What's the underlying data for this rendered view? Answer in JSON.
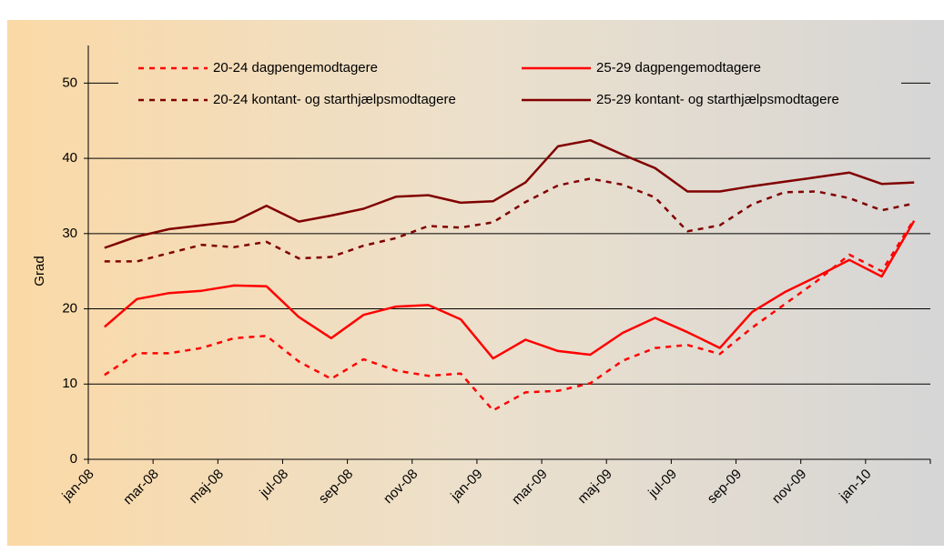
{
  "chart_data": {
    "type": "line",
    "y_axis_label": "Grad",
    "categories": [
      "jan-08",
      null,
      "mar-08",
      null,
      "maj-08",
      null,
      "jul-08",
      null,
      "sep-08",
      null,
      "nov-08",
      null,
      "jan-09",
      null,
      "mar-09",
      null,
      "maj-09",
      null,
      "jul-09",
      null,
      "sep-09",
      null,
      "nov-09",
      null,
      "jan-10",
      null
    ],
    "series": [
      {
        "name": "20-24 dagpengemodtagere",
        "color": "#ff0000",
        "style": "dashed",
        "values": [
          11.2,
          14.1,
          14.1,
          14.8,
          16.1,
          16.4,
          13.0,
          10.7,
          13.3,
          11.8,
          11.1,
          11.4,
          6.5,
          8.9,
          9.1,
          10.1,
          13.1,
          14.8,
          15.2,
          14.0,
          17.5,
          20.6,
          23.7,
          27.2,
          25.0,
          31.9
        ]
      },
      {
        "name": "25-29 dagpengemodtagere",
        "color": "#ff0000",
        "style": "solid",
        "values": [
          17.6,
          21.3,
          22.1,
          22.4,
          23.1,
          23.0,
          18.9,
          16.1,
          19.2,
          20.3,
          20.5,
          18.6,
          13.4,
          15.9,
          14.4,
          13.9,
          16.8,
          18.8,
          16.9,
          14.8,
          19.6,
          22.2,
          24.3,
          26.5,
          24.3,
          31.7
        ]
      },
      {
        "name": "20-24 kontant- og starthjælpsmodtagere",
        "color": "#800000",
        "style": "dashed",
        "values": [
          26.3,
          26.3,
          27.4,
          28.5,
          28.2,
          28.9,
          26.7,
          26.9,
          28.4,
          29.4,
          31.0,
          30.8,
          31.5,
          34.2,
          36.4,
          37.3,
          36.5,
          34.8,
          30.3,
          31.1,
          33.9,
          35.5,
          35.6,
          34.7,
          33.1,
          34.0
        ]
      },
      {
        "name": "25-29 kontant- og starthjælpsmodtagere",
        "color": "#800000",
        "style": "solid",
        "values": [
          28.1,
          29.6,
          30.6,
          31.1,
          31.6,
          33.7,
          31.6,
          32.4,
          33.3,
          34.9,
          35.1,
          34.1,
          34.3,
          36.8,
          41.6,
          42.4,
          40.5,
          38.7,
          35.6,
          35.6,
          36.3,
          36.9,
          37.5,
          38.1,
          36.6,
          36.8
        ]
      }
    ],
    "ylim": [
      0,
      55
    ],
    "yticks": [
      0,
      10,
      20,
      30,
      40,
      50
    ],
    "grid": true,
    "legend": "top"
  }
}
